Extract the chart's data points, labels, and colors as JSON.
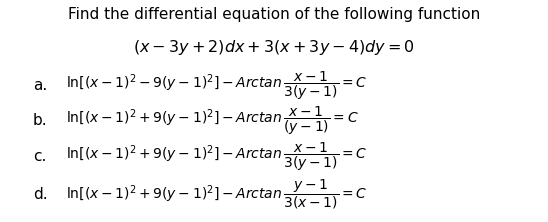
{
  "title_line1": "Find the differential equation of the following function",
  "title_line2": "$(x - 3y + 2)dx + 3(x + 3y - 4)dy = 0$",
  "options": [
    {
      "label": "a.",
      "text": "$\\mathrm{ln}[(x-1)^2 - 9(y-1)^2] - Arctan\\,\\dfrac{x-1}{3(y-1)} = C$"
    },
    {
      "label": "b.",
      "text": "$\\mathrm{ln}[(x-1)^2 + 9(y-1)^2] - Arctan\\,\\dfrac{x-1}{(y-1)} = C$"
    },
    {
      "label": "c.",
      "text": "$\\mathrm{ln}[(x-1)^2 + 9(y-1)^2] - Arctan\\,\\dfrac{x-1}{3(y-1)} = C$"
    },
    {
      "label": "d.",
      "text": "$\\mathrm{ln}[(x-1)^2 + 9(y-1)^2] - Arctan\\,\\dfrac{y-1}{3(x-1)} = C$"
    }
  ],
  "bg_color": "#ffffff",
  "text_color": "#000000",
  "title1_fontsize": 11.0,
  "title2_fontsize": 11.5,
  "label_fontsize": 11.0,
  "body_fontsize": 10.0
}
